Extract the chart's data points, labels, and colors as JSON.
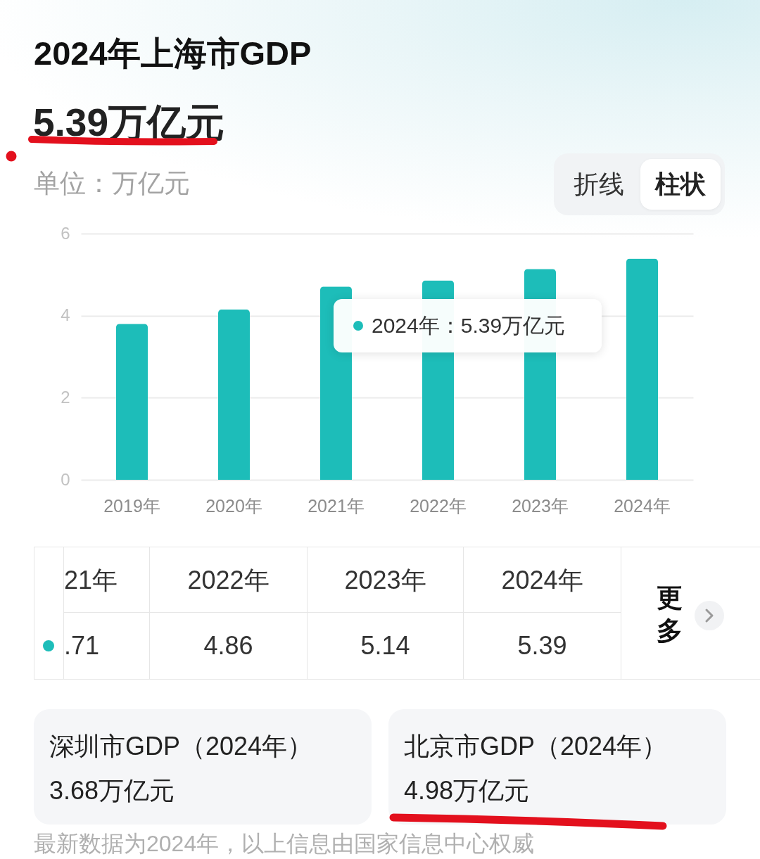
{
  "chart_data": {
    "type": "bar",
    "title": "2024年上海市GDP",
    "subtitle": "5.39万亿元",
    "ylabel": "单位：万亿元",
    "categories": [
      "2019年",
      "2020年",
      "2021年",
      "2022年",
      "2023年",
      "2024年"
    ],
    "values": [
      3.8,
      4.15,
      4.71,
      4.86,
      5.14,
      5.39
    ],
    "color": "#1dbdb9",
    "ylim": [
      0,
      6
    ],
    "yticks": [
      0,
      2,
      4,
      6
    ],
    "grid": "y",
    "annotations": [
      "2024年：5.39万亿元",
      "折线",
      "柱状",
      "21年",
      "2022年",
      "2023年",
      "2024年",
      ".71",
      "4.86",
      "5.14",
      "5.39",
      "更多",
      "深圳市GDP（2024年）",
      "3.68万亿元",
      "北京市GDP（2024年）",
      "4.98万亿元",
      "最新数据为2024年，以上信息由国家信息中心权威"
    ]
  }
}
